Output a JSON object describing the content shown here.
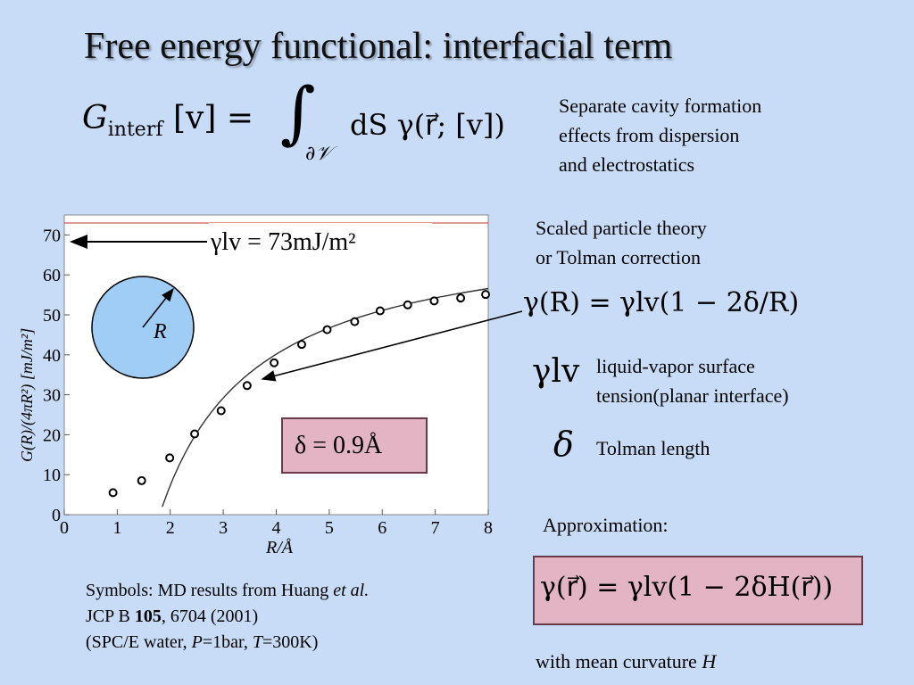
{
  "title": "Free energy functional: interfacial term",
  "main_equation": {
    "G": "G",
    "sub": "interf",
    "arg": "[v] =",
    "integral_sign": "∫",
    "integral_sub": "∂𝒱",
    "integrand": "dS γ(r⃗; [v])"
  },
  "note_separate": [
    "Separate cavity formation",
    "effects from dispersion",
    "and electrostatics"
  ],
  "note_scaled": [
    "Scaled particle theory",
    "or Tolman correction"
  ],
  "gamma_R_equation": "γ(R) = γlv(1 − 2δ/R)",
  "gamma_lv_symbol": "γlv",
  "gamma_lv_desc": [
    "liquid-vapor surface",
    "tension(planar interface)"
  ],
  "delta_symbol": "δ",
  "delta_desc": "Tolman length",
  "approx_label": "Approximation:",
  "approx_equation": "γ(r⃗) = γlv(1 − 2δH(r⃗))",
  "curvature_note_prefix": "with mean curvature ",
  "curvature_note_var": "H",
  "citation": {
    "line1_prefix": "Symbols: MD results from Huang ",
    "line1_italic": "et al.",
    "line2_prefix": "JCP B ",
    "line2_bold": "105",
    "line2_suffix": ", 6704 (2001)",
    "line3_a": "(SPC/E water, ",
    "line3_P": "P",
    "line3_b": "=1bar, ",
    "line3_T": "T",
    "line3_c": "=300K)"
  },
  "chart_data": {
    "type": "scatter",
    "xlabel": "R/Å",
    "ylabel": "G(R)/(4πR²) [mJ/m²]",
    "xlim": [
      0,
      8
    ],
    "ylim": [
      0,
      75
    ],
    "x_ticks": [
      "0",
      "1",
      "2",
      "3",
      "4",
      "5",
      "6",
      "7",
      "8"
    ],
    "y_ticks": [
      "0",
      "10",
      "20",
      "30",
      "40",
      "50",
      "60",
      "70"
    ],
    "grid": false,
    "gamma_lv_label": "γlv = 73mJ/m²",
    "gamma_lv_value": 73,
    "radius_label": "R",
    "delta_box_label": "δ = 0.9Å",
    "series": [
      {
        "points": [
          [
            0.92,
            5.5
          ],
          [
            1.46,
            8.5
          ],
          [
            1.99,
            14.2
          ],
          [
            2.46,
            20.2
          ],
          [
            2.96,
            26.0
          ],
          [
            3.45,
            32.3
          ],
          [
            3.96,
            38.0
          ],
          [
            4.48,
            42.6
          ],
          [
            4.96,
            46.3
          ],
          [
            5.48,
            48.3
          ],
          [
            5.96,
            51.0
          ],
          [
            6.48,
            52.5
          ],
          [
            6.98,
            53.5
          ],
          [
            7.48,
            54.2
          ],
          [
            7.95,
            55.1
          ]
        ]
      }
    ],
    "fit_curve": {
      "gamma_lv": 73,
      "delta": 0.9,
      "x_start": 1.85,
      "x_end": 8.0
    }
  }
}
